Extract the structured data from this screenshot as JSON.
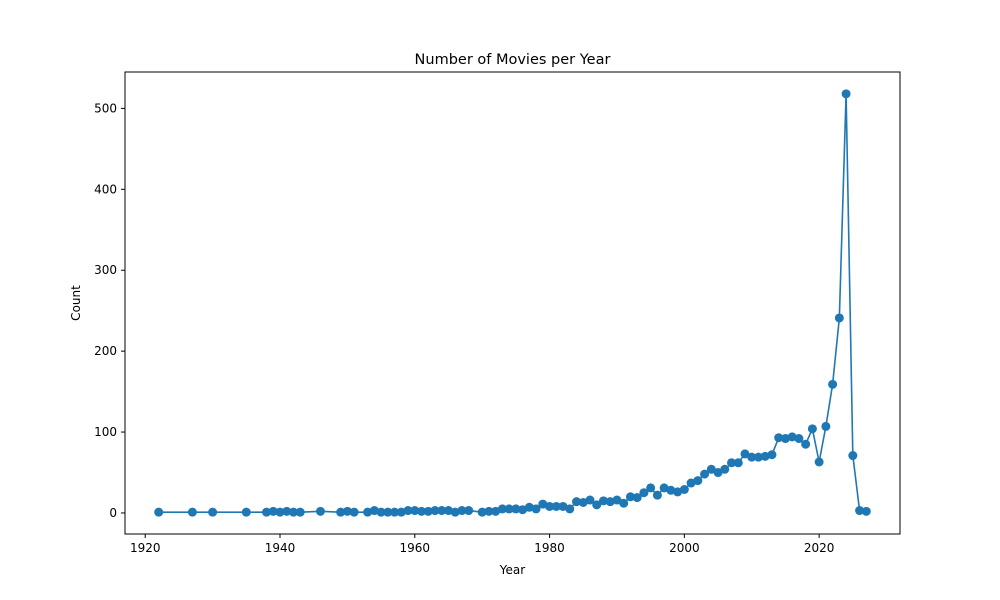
{
  "chart_data": {
    "type": "line",
    "title": "Number of Movies per Year",
    "xlabel": "Year",
    "ylabel": "Count",
    "xlim": [
      1917,
      2032
    ],
    "ylim": [
      -26,
      545
    ],
    "xticks": [
      1920,
      1940,
      1960,
      1980,
      2000,
      2020
    ],
    "yticks": [
      0,
      100,
      200,
      300,
      400,
      500
    ],
    "grid": false,
    "series_color": "#1f77b4",
    "series": [
      {
        "x": [
          1922,
          1927,
          1930,
          1935,
          1938,
          1939,
          1940,
          1941,
          1942,
          1943,
          1946,
          1949,
          1950,
          1951,
          1953,
          1954,
          1955,
          1956,
          1957,
          1958,
          1959,
          1960,
          1961,
          1962,
          1963,
          1964,
          1965,
          1966,
          1967,
          1968,
          1970,
          1971,
          1972,
          1973,
          1974,
          1975,
          1976,
          1977,
          1978,
          1979,
          1980,
          1981,
          1982,
          1983,
          1984,
          1985,
          1986,
          1987,
          1988,
          1989,
          1990,
          1991,
          1992,
          1993,
          1994,
          1995,
          1996,
          1997,
          1998,
          1999,
          2000,
          2001,
          2002,
          2003,
          2004,
          2005,
          2006,
          2007,
          2008,
          2009,
          2010,
          2011,
          2012,
          2013,
          2014,
          2015,
          2016,
          2017,
          2018,
          2019,
          2020,
          2021,
          2022,
          2023,
          2024,
          2025,
          2026,
          2027
        ],
        "values": [
          1,
          1,
          1,
          1,
          1,
          2,
          1,
          2,
          1,
          1,
          2,
          1,
          2,
          1,
          1,
          3,
          1,
          1,
          1,
          1,
          3,
          3,
          2,
          2,
          3,
          3,
          3,
          1,
          3,
          3,
          1,
          2,
          2,
          5,
          5,
          5,
          4,
          7,
          5,
          11,
          8,
          8,
          8,
          5,
          14,
          13,
          16,
          10,
          15,
          14,
          16,
          12,
          20,
          19,
          25,
          31,
          22,
          31,
          28,
          26,
          29,
          37,
          40,
          48,
          54,
          50,
          54,
          62,
          62,
          73,
          69,
          69,
          70,
          72,
          93,
          92,
          94,
          92,
          85,
          104,
          63,
          107,
          159,
          241,
          518,
          71,
          3,
          2
        ]
      }
    ]
  }
}
